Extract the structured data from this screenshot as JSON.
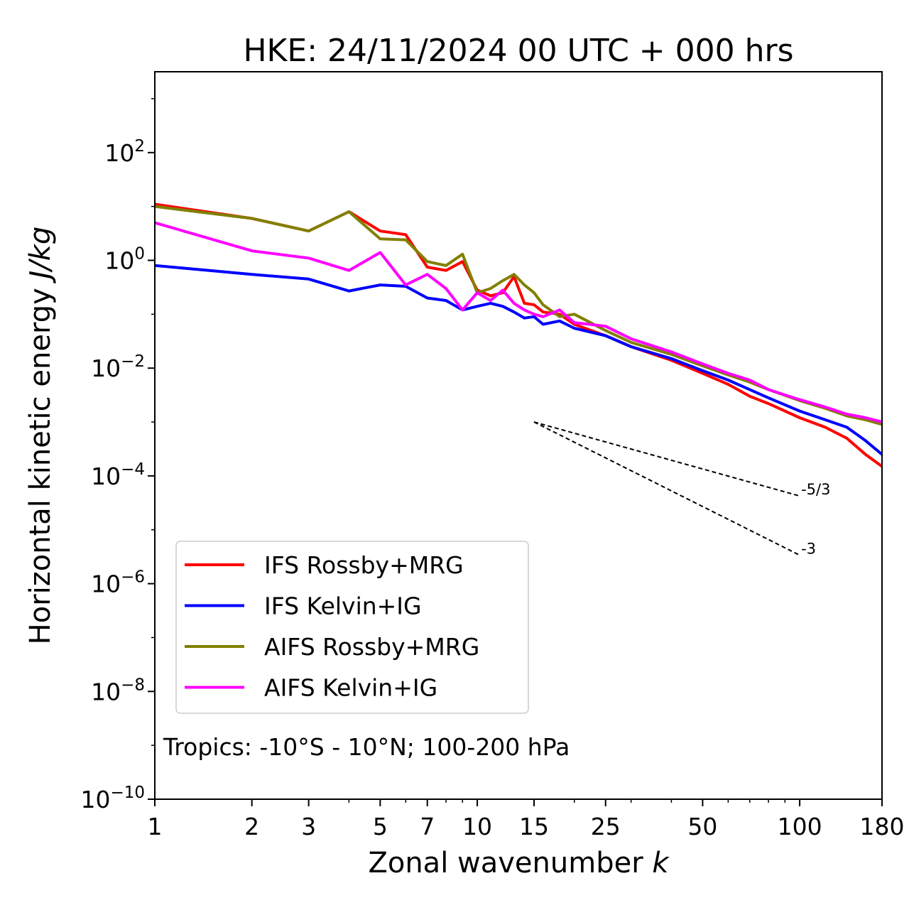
{
  "chart_data": {
    "type": "line",
    "title": "HKE: 24/11/2024 00 UTC + 000 hrs",
    "xlabel": "Zonal wavenumber",
    "xlabel_var": "k",
    "ylabel": "Horizontal kinetic energy",
    "ylabel_unit": "J/kg",
    "xscale": "log",
    "yscale": "log",
    "xlim": [
      1,
      180
    ],
    "ylim_exponent": [
      -10,
      3.5
    ],
    "xticks": [
      1,
      2,
      3,
      5,
      7,
      10,
      15,
      25,
      50,
      100,
      180
    ],
    "xtick_labels": [
      "1",
      "2",
      "3",
      "5",
      "7",
      "10",
      "15",
      "25",
      "50",
      "100",
      "180"
    ],
    "yticks_exponent": [
      -10,
      -8,
      -6,
      -4,
      -2,
      0,
      2
    ],
    "ytick_base": "10",
    "ytick_exponent_labels": [
      "−10",
      "−8",
      "−6",
      "−4",
      "−2",
      "0",
      "2"
    ],
    "grid": false,
    "legend_position": "lower-left",
    "annotation": "Tropics: -10°S - 10°N; 100-200 hPa",
    "reference_lines": [
      {
        "label": "-5/3",
        "slope": -1.6667,
        "x_start": 15,
        "x_end": 100,
        "y_start": 0.001
      },
      {
        "label": "-3",
        "slope": -3,
        "x_start": 15,
        "x_end": 100,
        "y_start": 0.001
      }
    ],
    "series": [
      {
        "name": "IFS Rossby+MRG",
        "color": "#ff0000",
        "points": [
          [
            1,
            11
          ],
          [
            2,
            6
          ],
          [
            3,
            3.5
          ],
          [
            4,
            8
          ],
          [
            5,
            3.5
          ],
          [
            6,
            3
          ],
          [
            7,
            0.75
          ],
          [
            8,
            0.65
          ],
          [
            9,
            0.95
          ],
          [
            10,
            0.28
          ],
          [
            11,
            0.22
          ],
          [
            12,
            0.25
          ],
          [
            13,
            0.5
          ],
          [
            14,
            0.16
          ],
          [
            15,
            0.15
          ],
          [
            16,
            0.11
          ],
          [
            18,
            0.1
          ],
          [
            20,
            0.065
          ],
          [
            25,
            0.04
          ],
          [
            30,
            0.025
          ],
          [
            40,
            0.014
          ],
          [
            50,
            0.008
          ],
          [
            60,
            0.005
          ],
          [
            70,
            0.003
          ],
          [
            80,
            0.0022
          ],
          [
            100,
            0.0012
          ],
          [
            120,
            0.0008
          ],
          [
            140,
            0.0005
          ],
          [
            160,
            0.00025
          ],
          [
            180,
            0.00015
          ]
        ]
      },
      {
        "name": "IFS Kelvin+IG",
        "color": "#0000ff",
        "points": [
          [
            1,
            0.8
          ],
          [
            2,
            0.55
          ],
          [
            3,
            0.45
          ],
          [
            4,
            0.27
          ],
          [
            5,
            0.35
          ],
          [
            6,
            0.33
          ],
          [
            7,
            0.2
          ],
          [
            8,
            0.18
          ],
          [
            9,
            0.12
          ],
          [
            10,
            0.14
          ],
          [
            11,
            0.16
          ],
          [
            12,
            0.14
          ],
          [
            13,
            0.11
          ],
          [
            14,
            0.085
          ],
          [
            15,
            0.09
          ],
          [
            16,
            0.065
          ],
          [
            18,
            0.075
          ],
          [
            20,
            0.055
          ],
          [
            25,
            0.04
          ],
          [
            30,
            0.025
          ],
          [
            40,
            0.015
          ],
          [
            50,
            0.009
          ],
          [
            60,
            0.006
          ],
          [
            70,
            0.004
          ],
          [
            80,
            0.0028
          ],
          [
            100,
            0.0016
          ],
          [
            120,
            0.0011
          ],
          [
            140,
            0.0008
          ],
          [
            160,
            0.00045
          ],
          [
            180,
            0.00025
          ]
        ]
      },
      {
        "name": "AIFS Rossby+MRG",
        "color": "#808000",
        "points": [
          [
            1,
            10
          ],
          [
            2,
            6
          ],
          [
            3,
            3.5
          ],
          [
            4,
            8
          ],
          [
            5,
            2.5
          ],
          [
            6,
            2.4
          ],
          [
            7,
            0.95
          ],
          [
            8,
            0.8
          ],
          [
            9,
            1.3
          ],
          [
            10,
            0.25
          ],
          [
            11,
            0.3
          ],
          [
            12,
            0.42
          ],
          [
            13,
            0.55
          ],
          [
            14,
            0.35
          ],
          [
            15,
            0.25
          ],
          [
            16,
            0.15
          ],
          [
            18,
            0.09
          ],
          [
            20,
            0.1
          ],
          [
            25,
            0.05
          ],
          [
            30,
            0.03
          ],
          [
            40,
            0.018
          ],
          [
            50,
            0.011
          ],
          [
            60,
            0.0075
          ],
          [
            70,
            0.0055
          ],
          [
            80,
            0.004
          ],
          [
            100,
            0.0025
          ],
          [
            120,
            0.0018
          ],
          [
            140,
            0.0013
          ],
          [
            160,
            0.0011
          ],
          [
            180,
            0.0009
          ]
        ]
      },
      {
        "name": "AIFS Kelvin+IG",
        "color": "#ff00ff",
        "points": [
          [
            1,
            5
          ],
          [
            2,
            1.5
          ],
          [
            3,
            1.1
          ],
          [
            4,
            0.65
          ],
          [
            5,
            1.4
          ],
          [
            6,
            0.35
          ],
          [
            7,
            0.55
          ],
          [
            8,
            0.3
          ],
          [
            9,
            0.12
          ],
          [
            10,
            0.25
          ],
          [
            11,
            0.18
          ],
          [
            12,
            0.28
          ],
          [
            13,
            0.16
          ],
          [
            14,
            0.12
          ],
          [
            15,
            0.1
          ],
          [
            16,
            0.09
          ],
          [
            18,
            0.12
          ],
          [
            20,
            0.07
          ],
          [
            25,
            0.06
          ],
          [
            30,
            0.035
          ],
          [
            40,
            0.02
          ],
          [
            50,
            0.012
          ],
          [
            60,
            0.008
          ],
          [
            70,
            0.006
          ],
          [
            80,
            0.004
          ],
          [
            100,
            0.0026
          ],
          [
            120,
            0.0019
          ],
          [
            140,
            0.0014
          ],
          [
            160,
            0.0012
          ],
          [
            180,
            0.001
          ]
        ]
      }
    ]
  }
}
